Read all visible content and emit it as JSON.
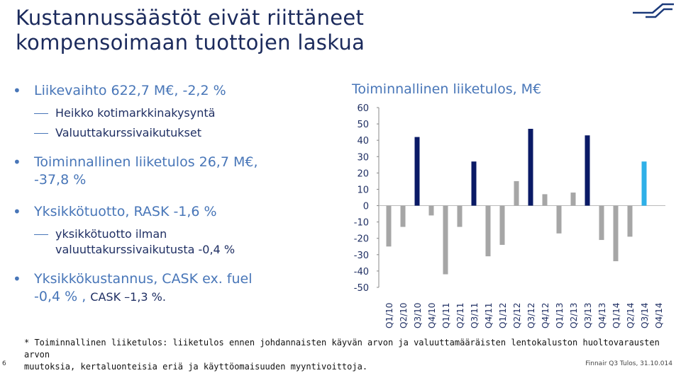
{
  "header": {
    "title_line1": "Kustannussäästöt eivät riittäneet",
    "title_line2": "kompensoimaan tuottojen laskua",
    "logo_icon": "finnair-logo-icon"
  },
  "bullets": {
    "b1": "Liikevaihto 622,7 M€, -2,2 %",
    "b1_sub1": "Heikko kotimarkkinakysyntä",
    "b1_sub2": "Valuuttakurssivaikutukset",
    "b2": "Toiminnallinen liiketulos 26,7 M€,",
    "b2_line2": "-37,8 %",
    "b3": "Yksikkötuotto, RASK -1,6 %",
    "b3_sub1_line1": "yksikkötuotto ilman",
    "b3_sub1_line2": "valuuttakurssivaikutusta -0,4 %",
    "b4": "Yksikkökustannus, CASK ex. fuel",
    "b4_line2": "-0,4 % ,",
    "b4_small": "CASK –1,3 %."
  },
  "chart": {
    "title": "Toiminnallinen liiketulos, M€"
  },
  "chart_data": {
    "type": "bar",
    "categories": [
      "Q1/10",
      "Q2/10",
      "Q3/10",
      "Q4/10",
      "Q1/11",
      "Q2/11",
      "Q3/11",
      "Q4/11",
      "Q1/12",
      "Q2/12",
      "Q3/12",
      "Q4/12",
      "Q1/13",
      "Q2/13",
      "Q3/13",
      "Q4/13",
      "Q1/14",
      "Q2/14",
      "Q3/14",
      "Q4/14"
    ],
    "values": [
      -25,
      -13,
      42,
      -6,
      -42,
      -13,
      27,
      -31,
      -24,
      15,
      47,
      7,
      -17,
      8,
      43,
      -21,
      -34,
      -19,
      27,
      null
    ],
    "highlight_q3_color": "#0a1a66",
    "latest_color": "#2fb0e8",
    "default_color": "#a6a6a6",
    "ylim": [
      -50,
      60
    ],
    "yticks": [
      60,
      50,
      40,
      30,
      20,
      10,
      0,
      -10,
      -20,
      -30,
      -40,
      -50
    ],
    "grid": false,
    "legend": "none"
  },
  "footnote": {
    "line1": "* Toiminnallinen liiketulos: liiketulos ennen johdannaisten käyvän arvon ja valuuttamääräisten lentokaluston huoltovarausten arvon",
    "line2": "muutoksia, kertaluonteisia eriä ja käyttöomaisuuden myyntivoittoja."
  },
  "footer": {
    "page_number": "6",
    "text": "Finnair Q3 Tulos, 31.10.014"
  }
}
